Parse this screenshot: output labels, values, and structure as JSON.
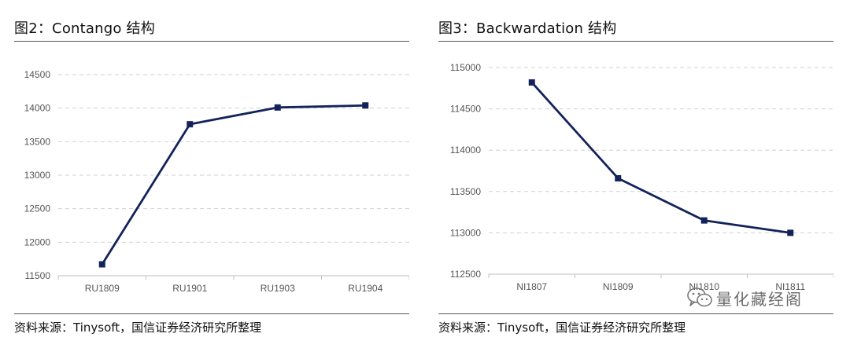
{
  "chart_data": [
    {
      "type": "line",
      "title": "图2：Contango 结构",
      "categories": [
        "RU1809",
        "RU1901",
        "RU1903",
        "RU1904"
      ],
      "series": [
        {
          "values": [
            11670,
            13760,
            14010,
            14040
          ]
        }
      ],
      "ylim": [
        11500,
        14500
      ],
      "yticks": [
        11500,
        12000,
        12500,
        13000,
        13500,
        14000,
        14500
      ],
      "grid": "horizontal dashed",
      "line_color": "#13225a",
      "source": "资料来源：Tinysoft，国信证券经济研究所整理"
    },
    {
      "type": "line",
      "title": "图3：Backwardation 结构",
      "categories": [
        "NI1807",
        "NI1809",
        "NI1810",
        "NI1811"
      ],
      "series": [
        {
          "values": [
            114820,
            113660,
            113150,
            113000
          ]
        }
      ],
      "ylim": [
        112500,
        115000
      ],
      "yticks": [
        112500,
        113000,
        113500,
        114000,
        114500,
        115000
      ],
      "grid": "horizontal dashed",
      "line_color": "#13225a",
      "source": "资料来源：Tinysoft，国信证券经济研究所整理"
    }
  ],
  "watermark": {
    "text": "量化藏经阁",
    "icon": "wechat-icon"
  }
}
